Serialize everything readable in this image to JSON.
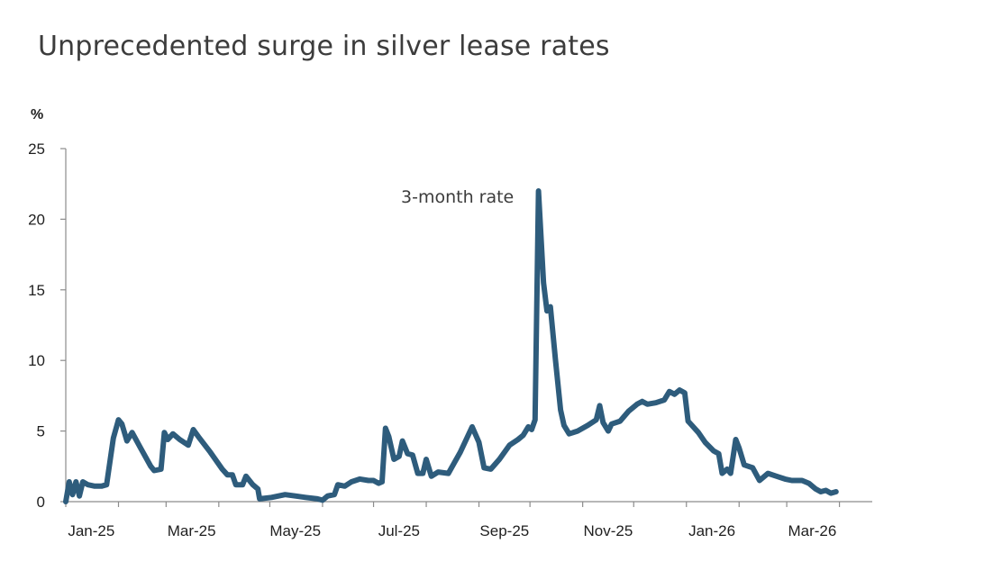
{
  "title": "Unprecedented surge in silver lease rates",
  "chart_data": {
    "type": "line",
    "title": "Unprecedented surge in silver lease rates",
    "ylabel": "%",
    "xlabel": "",
    "ylim": [
      0,
      25
    ],
    "yticks": [
      0,
      5,
      10,
      15,
      20,
      25
    ],
    "xtick_labels": [
      "Jan-25",
      "Mar-25",
      "May-25",
      "Jul-25",
      "Sep-25",
      "Nov-25",
      "Jan-26",
      "Mar-26"
    ],
    "xlim": [
      "2025-01-01",
      "2026-04-15"
    ],
    "grid": false,
    "line_color": "#2e5c7c",
    "annotation": "3-month rate",
    "series": [
      {
        "name": "3-month rate",
        "points": [
          [
            "2025-01-01",
            0.0
          ],
          [
            "2025-01-03",
            1.4
          ],
          [
            "2025-01-05",
            0.5
          ],
          [
            "2025-01-07",
            1.4
          ],
          [
            "2025-01-09",
            0.4
          ],
          [
            "2025-01-11",
            1.4
          ],
          [
            "2025-01-14",
            1.2
          ],
          [
            "2025-01-18",
            1.1
          ],
          [
            "2025-01-22",
            1.1
          ],
          [
            "2025-01-25",
            1.2
          ],
          [
            "2025-01-29",
            4.5
          ],
          [
            "2025-02-01",
            5.8
          ],
          [
            "2025-02-03",
            5.5
          ],
          [
            "2025-02-06",
            4.3
          ],
          [
            "2025-02-09",
            4.9
          ],
          [
            "2025-02-14",
            3.8
          ],
          [
            "2025-02-20",
            2.5
          ],
          [
            "2025-02-22",
            2.2
          ],
          [
            "2025-02-26",
            2.3
          ],
          [
            "2025-02-28",
            4.9
          ],
          [
            "2025-03-02",
            4.4
          ],
          [
            "2025-03-05",
            4.8
          ],
          [
            "2025-03-09",
            4.4
          ],
          [
            "2025-03-14",
            4.0
          ],
          [
            "2025-03-17",
            5.1
          ],
          [
            "2025-03-20",
            4.6
          ],
          [
            "2025-03-27",
            3.5
          ],
          [
            "2025-04-03",
            2.3
          ],
          [
            "2025-04-06",
            1.9
          ],
          [
            "2025-04-09",
            1.9
          ],
          [
            "2025-04-11",
            1.2
          ],
          [
            "2025-04-15",
            1.2
          ],
          [
            "2025-04-17",
            1.8
          ],
          [
            "2025-04-21",
            1.2
          ],
          [
            "2025-04-24",
            0.9
          ],
          [
            "2025-04-25",
            0.2
          ],
          [
            "2025-05-02",
            0.3
          ],
          [
            "2025-05-10",
            0.5
          ],
          [
            "2025-05-16",
            0.4
          ],
          [
            "2025-05-22",
            0.3
          ],
          [
            "2025-05-29",
            0.2
          ],
          [
            "2025-06-01",
            0.1
          ],
          [
            "2025-06-04",
            0.4
          ],
          [
            "2025-06-08",
            0.5
          ],
          [
            "2025-06-10",
            1.2
          ],
          [
            "2025-06-14",
            1.1
          ],
          [
            "2025-06-18",
            1.4
          ],
          [
            "2025-06-23",
            1.6
          ],
          [
            "2025-06-28",
            1.5
          ],
          [
            "2025-07-01",
            1.5
          ],
          [
            "2025-07-04",
            1.3
          ],
          [
            "2025-07-06",
            1.4
          ],
          [
            "2025-07-08",
            5.2
          ],
          [
            "2025-07-10",
            4.6
          ],
          [
            "2025-07-13",
            3.0
          ],
          [
            "2025-07-16",
            3.2
          ],
          [
            "2025-07-18",
            4.3
          ],
          [
            "2025-07-21",
            3.4
          ],
          [
            "2025-07-24",
            3.3
          ],
          [
            "2025-07-27",
            2.0
          ],
          [
            "2025-07-30",
            2.0
          ],
          [
            "2025-08-01",
            3.0
          ],
          [
            "2025-08-04",
            1.8
          ],
          [
            "2025-08-08",
            2.1
          ],
          [
            "2025-08-14",
            2.0
          ],
          [
            "2025-08-21",
            3.5
          ],
          [
            "2025-08-28",
            5.3
          ],
          [
            "2025-09-01",
            4.2
          ],
          [
            "2025-09-04",
            2.4
          ],
          [
            "2025-09-08",
            2.3
          ],
          [
            "2025-09-13",
            3.0
          ],
          [
            "2025-09-19",
            4.0
          ],
          [
            "2025-09-24",
            4.4
          ],
          [
            "2025-09-27",
            4.7
          ],
          [
            "2025-09-30",
            5.3
          ],
          [
            "2025-10-02",
            5.1
          ],
          [
            "2025-10-04",
            5.8
          ],
          [
            "2025-10-06",
            22.0
          ],
          [
            "2025-10-09",
            15.5
          ],
          [
            "2025-10-11",
            13.5
          ],
          [
            "2025-10-13",
            13.8
          ],
          [
            "2025-10-16",
            10.0
          ],
          [
            "2025-10-19",
            6.5
          ],
          [
            "2025-10-21",
            5.4
          ],
          [
            "2025-10-24",
            4.8
          ],
          [
            "2025-10-29",
            5.0
          ],
          [
            "2025-11-04",
            5.4
          ],
          [
            "2025-11-09",
            5.8
          ],
          [
            "2025-11-11",
            6.8
          ],
          [
            "2025-11-13",
            5.6
          ],
          [
            "2025-11-16",
            5.0
          ],
          [
            "2025-11-18",
            5.5
          ],
          [
            "2025-11-23",
            5.7
          ],
          [
            "2025-11-28",
            6.4
          ],
          [
            "2025-12-03",
            6.9
          ],
          [
            "2025-12-06",
            7.1
          ],
          [
            "2025-12-09",
            6.9
          ],
          [
            "2025-12-14",
            7.0
          ],
          [
            "2025-12-19",
            7.2
          ],
          [
            "2025-12-22",
            7.8
          ],
          [
            "2025-12-25",
            7.6
          ],
          [
            "2025-12-28",
            7.9
          ],
          [
            "2025-12-31",
            7.7
          ],
          [
            "2026-01-02",
            5.7
          ],
          [
            "2026-01-05",
            5.3
          ],
          [
            "2026-01-08",
            4.9
          ],
          [
            "2026-01-12",
            4.2
          ],
          [
            "2026-01-17",
            3.6
          ],
          [
            "2026-01-20",
            3.4
          ],
          [
            "2026-01-22",
            2.0
          ],
          [
            "2026-01-25",
            2.3
          ],
          [
            "2026-01-27",
            2.0
          ],
          [
            "2026-01-30",
            4.4
          ],
          [
            "2026-02-01",
            3.8
          ],
          [
            "2026-02-04",
            2.6
          ],
          [
            "2026-02-09",
            2.4
          ],
          [
            "2026-02-13",
            1.5
          ],
          [
            "2026-02-18",
            2.0
          ],
          [
            "2026-02-23",
            1.8
          ],
          [
            "2026-02-28",
            1.6
          ],
          [
            "2026-03-04",
            1.5
          ],
          [
            "2026-03-10",
            1.5
          ],
          [
            "2026-03-14",
            1.3
          ],
          [
            "2026-03-18",
            0.9
          ],
          [
            "2026-03-21",
            0.7
          ],
          [
            "2026-03-24",
            0.8
          ],
          [
            "2026-03-27",
            0.6
          ],
          [
            "2026-03-30",
            0.7
          ]
        ]
      }
    ]
  }
}
